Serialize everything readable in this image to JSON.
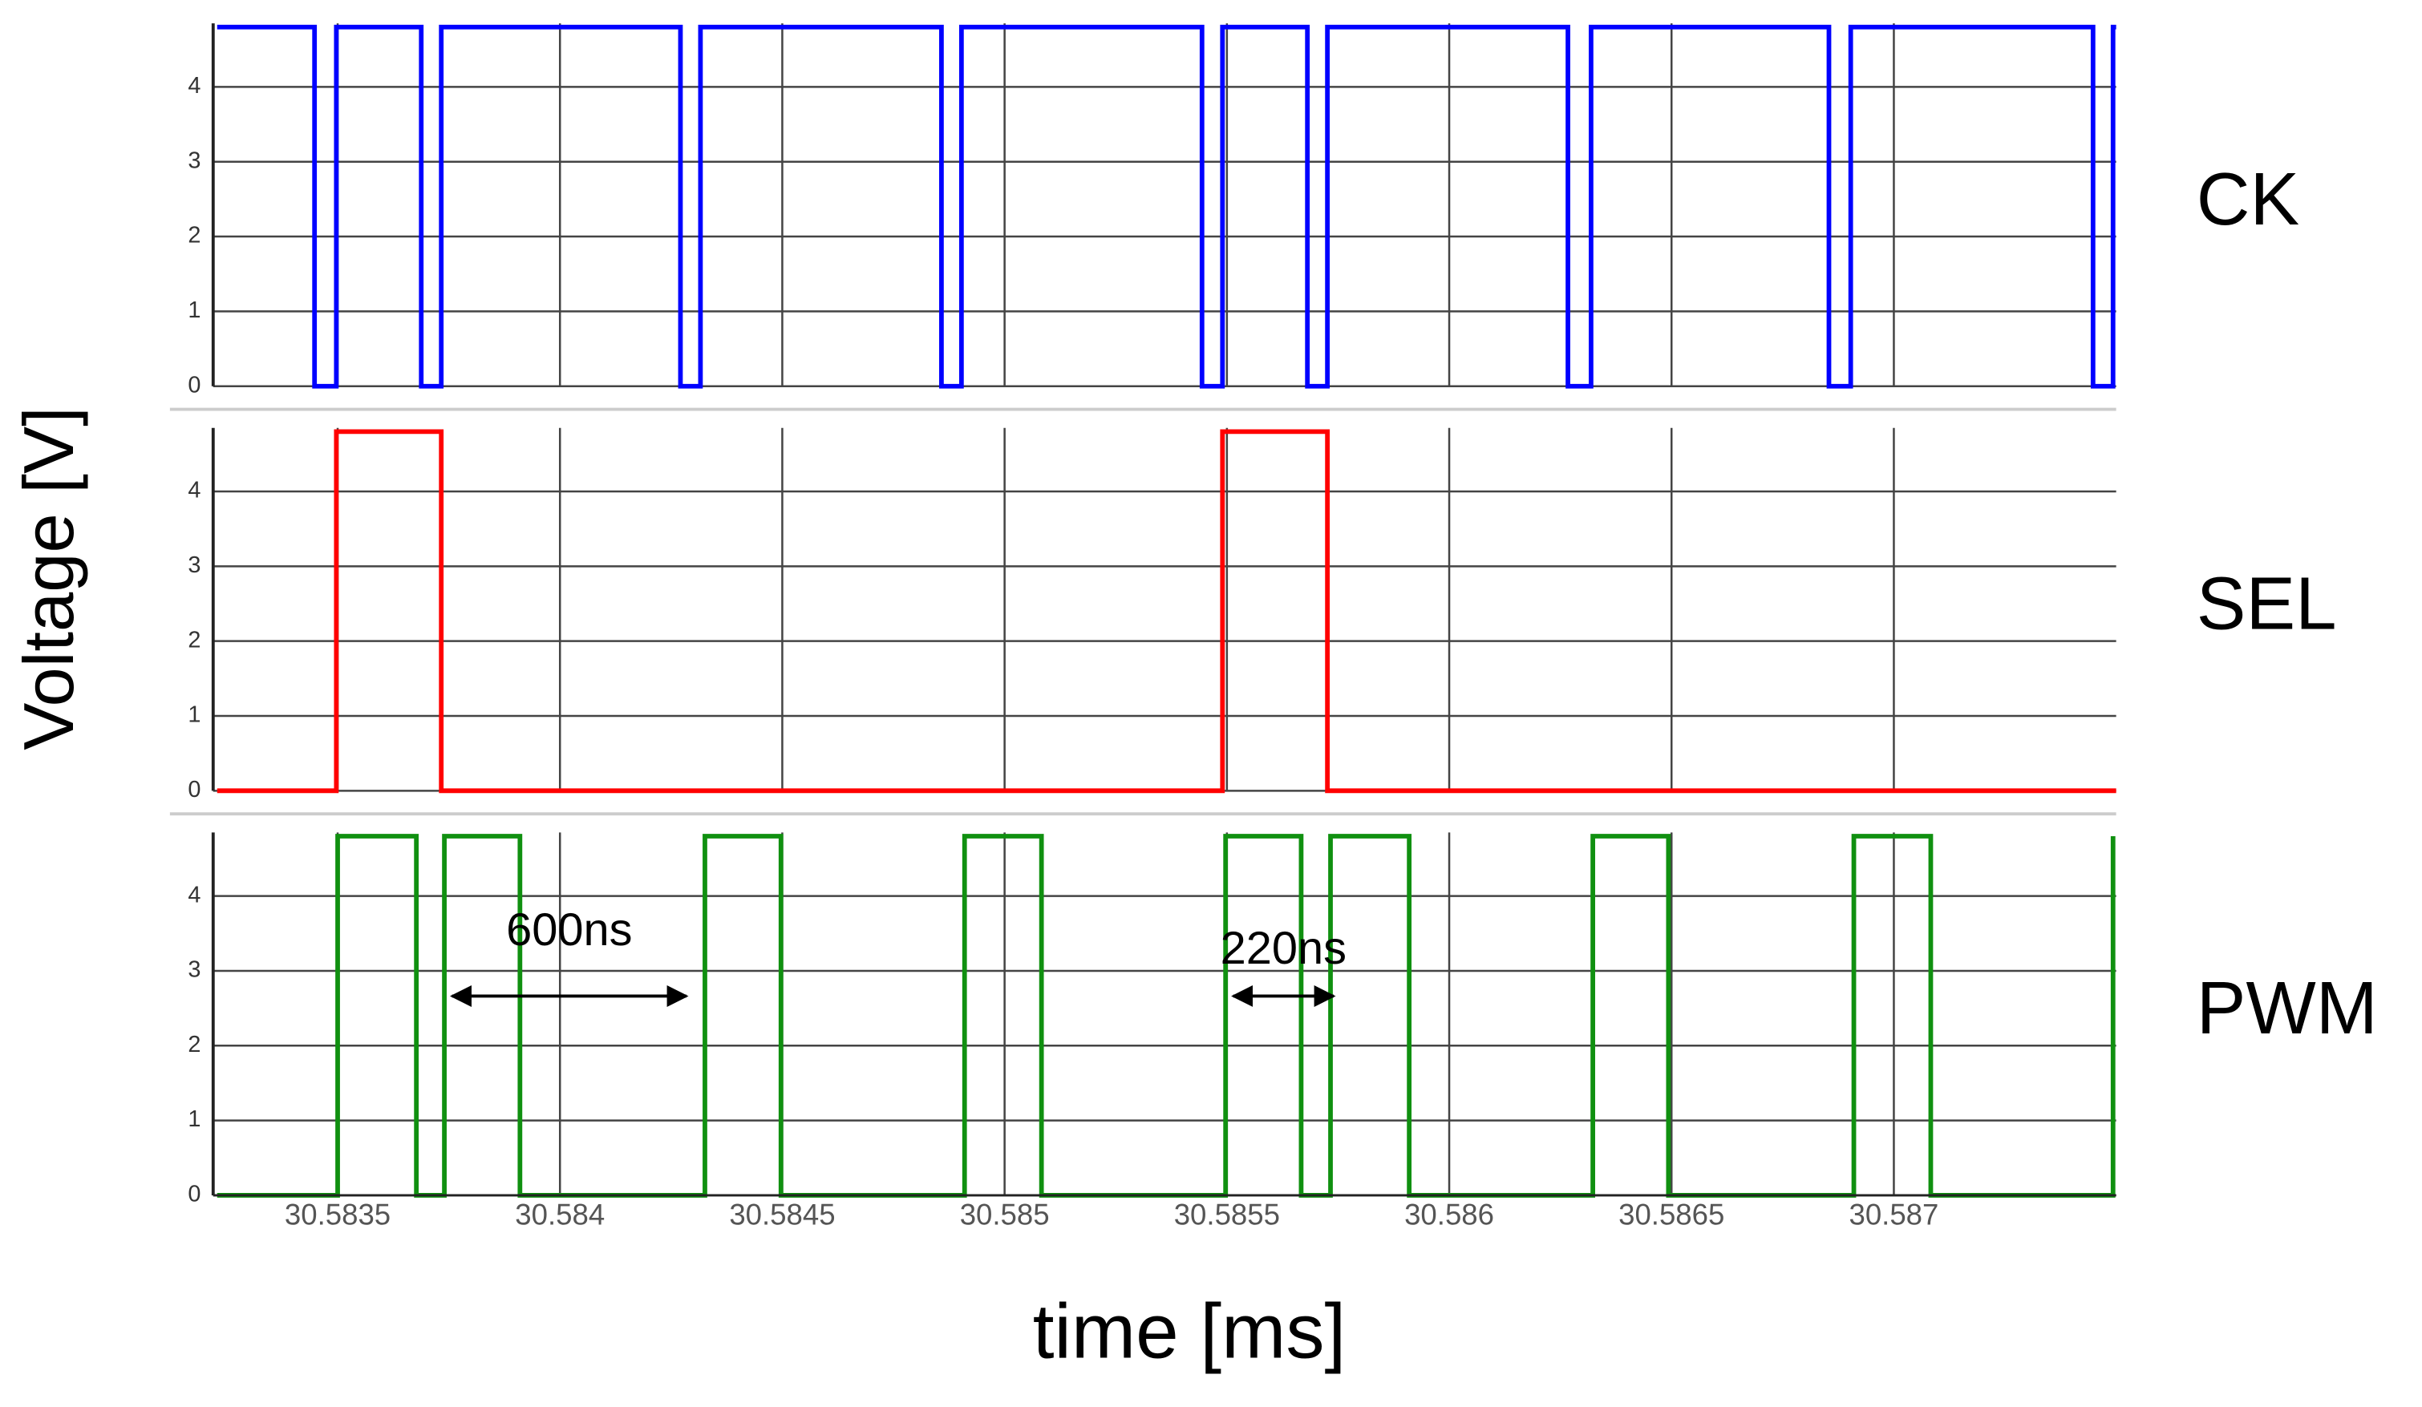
{
  "chart_data": [
    {
      "type": "line",
      "name": "CK",
      "color": "#0000ff",
      "x": [
        30.583229,
        30.583448,
        30.583448,
        30.583497,
        30.583497,
        30.583688,
        30.583688,
        30.583733,
        30.583733,
        30.584271,
        30.584271,
        30.584316,
        30.584316,
        30.584858,
        30.584858,
        30.584903,
        30.584903,
        30.585444,
        30.585444,
        30.58549,
        30.58549,
        30.585681,
        30.585681,
        30.585726,
        30.585726,
        30.586267,
        30.586267,
        30.586319,
        30.586319,
        30.586854,
        30.586854,
        30.586903,
        30.586903,
        30.587448,
        30.587448,
        30.587493,
        30.587493,
        30.5875
      ],
      "values": [
        4.8,
        4.8,
        0,
        0,
        4.8,
        4.8,
        0,
        0,
        4.8,
        4.8,
        0,
        0,
        4.8,
        4.8,
        0,
        0,
        4.8,
        4.8,
        0,
        0,
        4.8,
        4.8,
        0,
        0,
        4.8,
        4.8,
        0,
        0,
        4.8,
        4.8,
        0,
        0,
        4.8,
        4.8,
        0,
        0,
        4.8,
        4.8
      ],
      "xlim": [
        30.58322,
        30.5875
      ],
      "ylim": [
        0,
        4.85
      ],
      "yticks": [
        0,
        1,
        2,
        3,
        4
      ],
      "grid": true
    },
    {
      "type": "line",
      "name": "SEL",
      "color": "#ff0000",
      "ylabel": "Voltage [V]",
      "x": [
        30.583229,
        30.583497,
        30.583497,
        30.583733,
        30.583733,
        30.58549,
        30.58549,
        30.585726,
        30.585726,
        30.5875
      ],
      "values": [
        0,
        0,
        4.8,
        4.8,
        0,
        0,
        4.8,
        4.8,
        0,
        0
      ],
      "xlim": [
        30.58322,
        30.5875
      ],
      "ylim": [
        0,
        4.85
      ],
      "yticks": [
        0,
        1,
        2,
        3,
        4
      ],
      "grid": true
    },
    {
      "type": "line",
      "name": "PWM",
      "color": "#109010",
      "xlabel": "time [ms]",
      "x": [
        30.583229,
        30.5835,
        30.5835,
        30.583677,
        30.583677,
        30.58374,
        30.58374,
        30.58391,
        30.58391,
        30.584326,
        30.584326,
        30.584497,
        30.584497,
        30.58491,
        30.58491,
        30.585083,
        30.585083,
        30.585497,
        30.585497,
        30.585667,
        30.585667,
        30.585733,
        30.585733,
        30.58591,
        30.58591,
        30.586323,
        30.586323,
        30.586493,
        30.586493,
        30.58691,
        30.58691,
        30.587083,
        30.587083,
        30.587493,
        30.587493
      ],
      "values": [
        0,
        0,
        4.8,
        4.8,
        0,
        0,
        4.8,
        4.8,
        0,
        0,
        4.8,
        4.8,
        0,
        0,
        4.8,
        4.8,
        0,
        0,
        4.8,
        4.8,
        0,
        0,
        4.8,
        4.8,
        0,
        0,
        4.8,
        4.8,
        0,
        0,
        4.8,
        4.8,
        0,
        0,
        4.8
      ],
      "xlim": [
        30.58322,
        30.5875
      ],
      "ylim": [
        0,
        4.85
      ],
      "yticks": [
        0,
        1,
        2,
        3,
        4
      ],
      "xticks": [
        30.5835,
        30.584,
        30.5845,
        30.585,
        30.5855,
        30.586,
        30.5865,
        30.587
      ],
      "grid": true,
      "annotations": [
        {
          "text": "600ns"
        },
        {
          "text": "220ns"
        }
      ]
    }
  ]
}
